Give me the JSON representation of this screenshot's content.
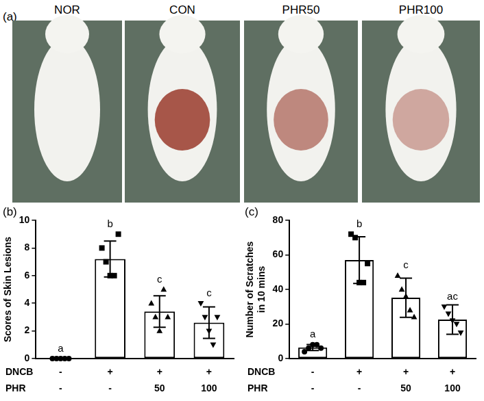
{
  "panel_a": {
    "label": "(a)",
    "titles": [
      "NOR",
      "CON",
      "PHR50",
      "PHR100"
    ]
  },
  "chart_data": [
    {
      "panel": "(b)",
      "type": "bar",
      "y_label": "Scores of Skin Lesions",
      "row_labels": [
        "DNCB",
        "PHR"
      ],
      "categories": [
        [
          "-",
          "-"
        ],
        [
          "+",
          "-"
        ],
        [
          "+",
          "50"
        ],
        [
          "+",
          "100"
        ]
      ],
      "values": [
        0,
        7.2,
        3.4,
        2.6
      ],
      "errors": [
        0,
        1.3,
        1.14,
        1.14
      ],
      "points": [
        [
          0,
          0,
          0,
          0,
          0
        ],
        [
          8,
          7,
          6,
          6,
          9
        ],
        [
          4,
          3,
          2,
          5,
          3
        ],
        [
          4,
          3,
          2,
          1,
          3
        ]
      ],
      "markers": [
        "circle",
        "square",
        "triangle",
        "triangle-down"
      ],
      "annotations": [
        "a",
        "b",
        "c",
        "c"
      ],
      "color": "#ffffff",
      "ylim": [
        0,
        10
      ],
      "yticks": [
        0,
        2,
        4,
        6,
        8,
        10
      ],
      "grid": false
    },
    {
      "panel": "(c)",
      "type": "bar",
      "y_label": [
        "Number of Scratches",
        "in 10 mins"
      ],
      "row_labels": [
        "DNCB",
        "PHR"
      ],
      "categories": [
        [
          "-",
          "-"
        ],
        [
          "+",
          "-"
        ],
        [
          "+",
          "50"
        ],
        [
          "+",
          "100"
        ]
      ],
      "values": [
        6.4,
        57,
        35.2,
        22.6
      ],
      "errors": [
        1.7,
        13.5,
        11.3,
        8.5
      ],
      "points": [
        [
          4,
          6,
          8,
          8,
          6
        ],
        [
          72,
          70,
          44,
          44,
          55
        ],
        [
          48,
          40,
          36,
          28,
          24
        ],
        [
          30,
          26,
          22,
          20,
          15
        ]
      ],
      "markers": [
        "circle",
        "square",
        "triangle",
        "triangle-down"
      ],
      "annotations": [
        "a",
        "b",
        "c",
        "ac"
      ],
      "color": "#ffffff",
      "ylim": [
        0,
        80
      ],
      "yticks": [
        0,
        20,
        40,
        60,
        80
      ],
      "grid": false
    }
  ]
}
